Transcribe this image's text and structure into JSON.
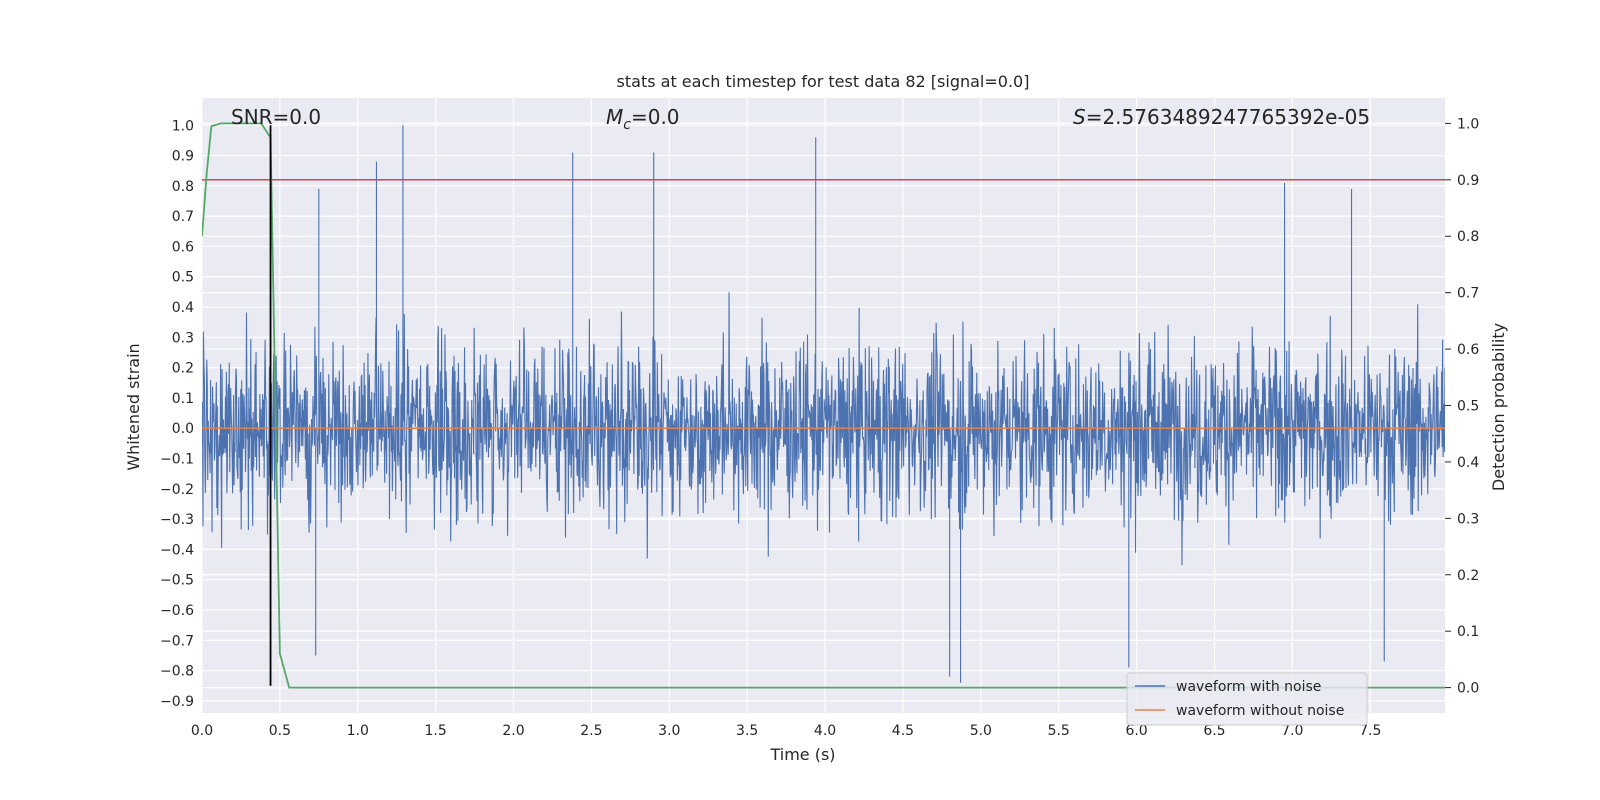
{
  "chart_data": {
    "type": "line",
    "title": "stats at each timestep for test data 82 [signal=0.0]",
    "xlabel": "Time (s)",
    "ylabel": "Whitened strain",
    "y2label": "Detection probability",
    "xlim": [
      0.0,
      7.98
    ],
    "ylim": [
      -0.94,
      1.09
    ],
    "y2lim": [
      -0.045,
      1.045
    ],
    "x_ticks": [
      "0.0",
      "0.5",
      "1.0",
      "1.5",
      "2.0",
      "2.5",
      "3.0",
      "3.5",
      "4.0",
      "4.5",
      "5.0",
      "5.5",
      "6.0",
      "6.5",
      "7.0",
      "7.5"
    ],
    "y_ticks": [
      "1.0",
      "0.9",
      "0.8",
      "0.7",
      "0.6",
      "0.5",
      "0.4",
      "0.3",
      "0.2",
      "0.1",
      "0.0",
      "-0.1",
      "-0.2",
      "-0.3",
      "-0.4",
      "-0.5",
      "-0.6",
      "-0.7",
      "-0.8",
      "-0.9"
    ],
    "y2_ticks": [
      "1.0",
      "0.9",
      "0.8",
      "0.7",
      "0.6",
      "0.5",
      "0.4",
      "0.3",
      "0.2",
      "0.1",
      "0.0"
    ],
    "grid": true,
    "legend_loc": "lower right",
    "annotations": {
      "snr": "SNR=0.0",
      "mc_symbol": "M",
      "mc_sub": "c",
      "mc_value": "=0.0",
      "s_symbol": "S",
      "s_value": "=2.5763489247765392e-05"
    },
    "series": [
      {
        "name": "waveform with noise",
        "color": "#4c72b0",
        "axis": "left",
        "description_values": "dense noise envelope roughly between -0.85 and 1.0",
        "peaks": [
          {
            "x": 1.12,
            "y": 0.88
          },
          {
            "x": 1.29,
            "y": 1.0
          },
          {
            "x": 2.38,
            "y": 0.91
          },
          {
            "x": 2.9,
            "y": 0.91
          },
          {
            "x": 3.94,
            "y": 0.96
          },
          {
            "x": 0.75,
            "y": 0.79
          },
          {
            "x": 6.95,
            "y": 0.81
          },
          {
            "x": 7.38,
            "y": 0.79
          }
        ],
        "troughs": [
          {
            "x": 4.8,
            "y": -0.82
          },
          {
            "x": 4.87,
            "y": -0.84
          },
          {
            "x": 0.73,
            "y": -0.75
          },
          {
            "x": 5.95,
            "y": -0.79
          },
          {
            "x": 7.59,
            "y": -0.77
          }
        ]
      },
      {
        "name": "waveform without noise",
        "color": "#dd8452",
        "axis": "left",
        "x": [
          0.0,
          7.98
        ],
        "y": [
          0.0,
          0.0
        ]
      },
      {
        "name": "detection probability",
        "color": "#55a868",
        "axis": "right",
        "x": [
          0.0,
          0.03,
          0.06,
          0.12,
          0.2,
          0.3,
          0.38,
          0.44,
          0.5,
          0.56,
          0.62,
          7.98
        ],
        "y": [
          0.8,
          0.91,
          0.995,
          1.0,
          1.0,
          1.0,
          1.0,
          0.975,
          0.06,
          0.0,
          0.0,
          0.0
        ]
      }
    ],
    "threshold": {
      "axis": "right",
      "y": 0.9,
      "color": "#c44e52"
    },
    "marker_time": {
      "x": 0.44,
      "y_from": -0.85,
      "y_to": 1.0,
      "color": "#000000"
    }
  }
}
